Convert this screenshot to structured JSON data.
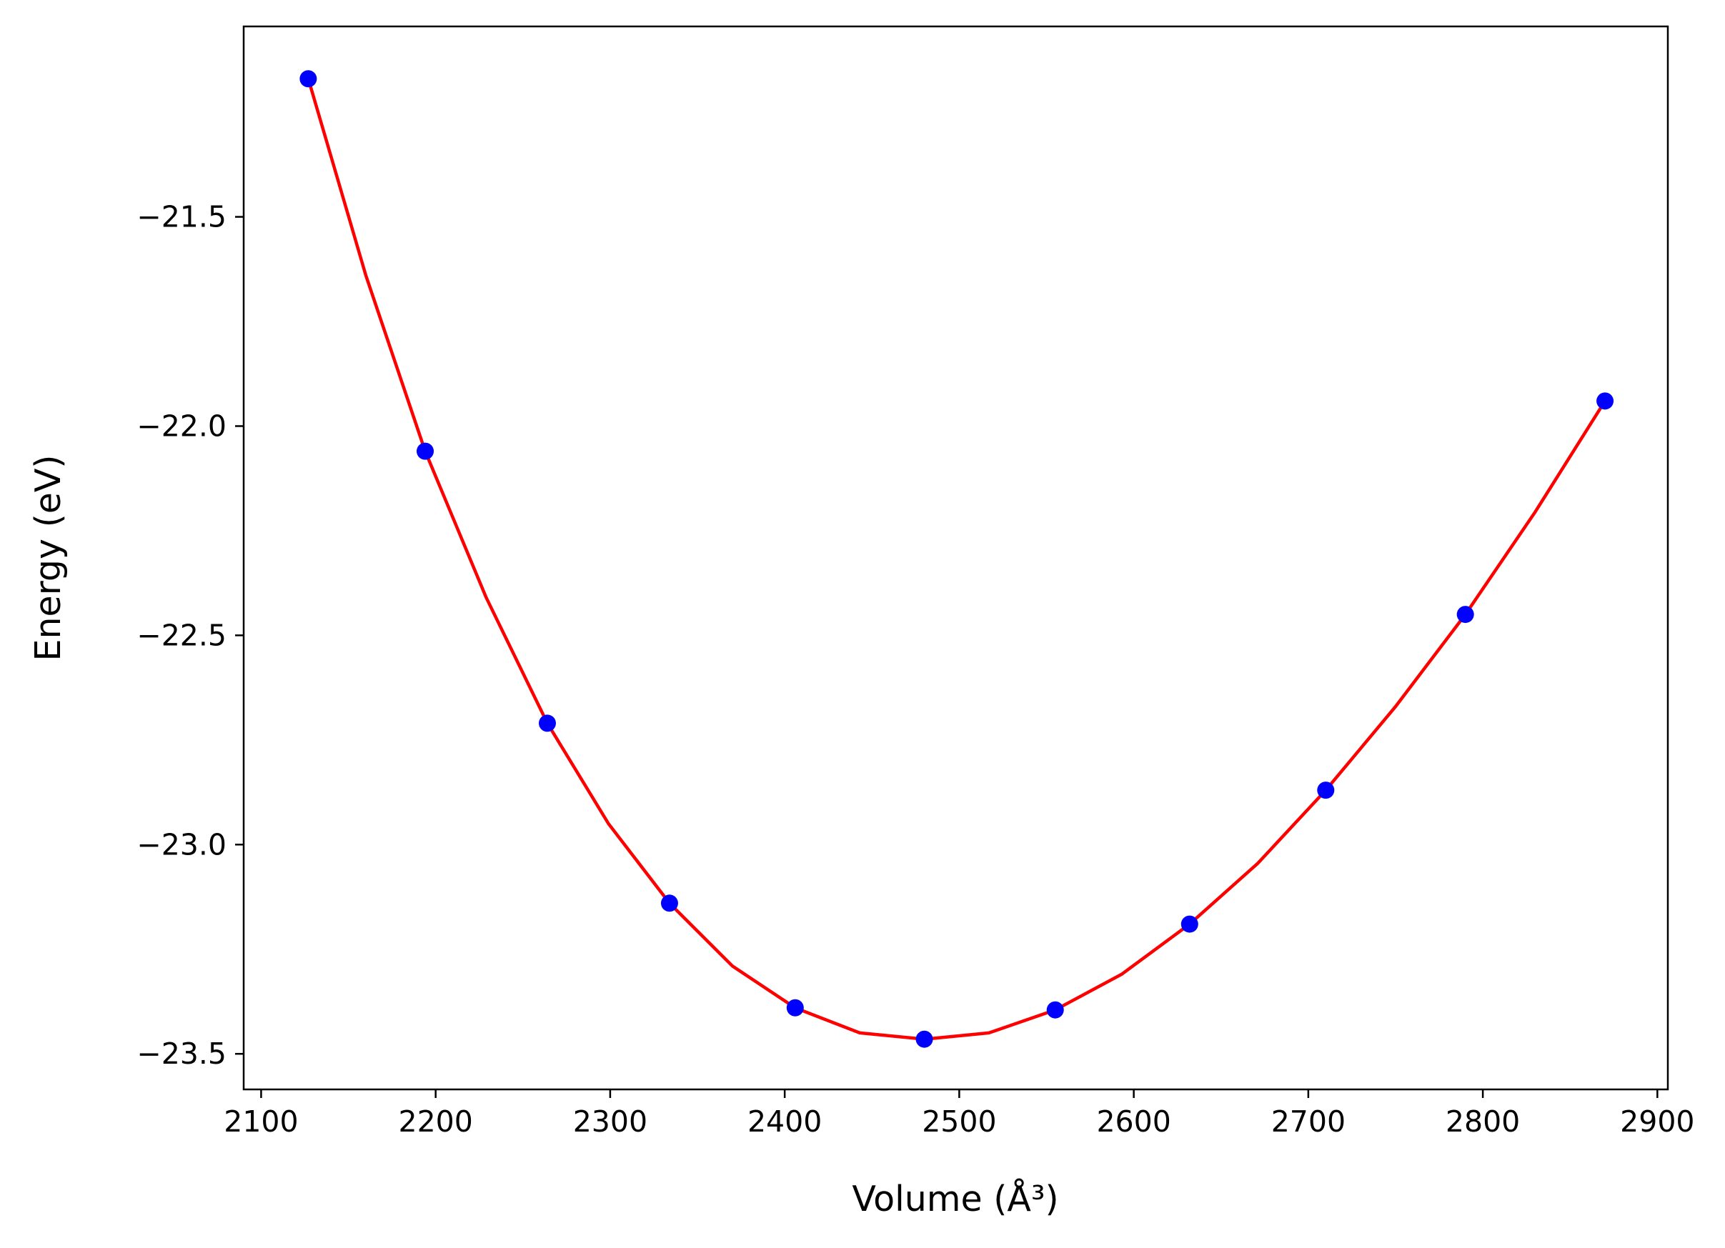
{
  "chart_data": {
    "type": "line",
    "title": "",
    "xlabel": "Volume (Å³)",
    "ylabel": "Energy (eV)",
    "xlim": [
      2090,
      2906
    ],
    "ylim": [
      -23.585,
      -21.045
    ],
    "grid": false,
    "legend": "none",
    "x_ticks": [
      2100,
      2200,
      2300,
      2400,
      2500,
      2600,
      2700,
      2800,
      2900
    ],
    "x_tick_labels": [
      "2100",
      "2200",
      "2300",
      "2400",
      "2500",
      "2600",
      "2700",
      "2800",
      "2900"
    ],
    "y_ticks": [
      -21.5,
      -22.0,
      -22.5,
      -23.0,
      -23.5
    ],
    "y_tick_labels": [
      "−21.5",
      "−22.0",
      "−22.5",
      "−23.0",
      "−23.5"
    ],
    "series": [
      {
        "kind": "scatter",
        "color": "#0000ff",
        "x": [
          2127,
          2194,
          2264,
          2334,
          2406,
          2480,
          2555,
          2632,
          2710,
          2790,
          2870
        ],
        "y": [
          -21.17,
          -22.06,
          -22.71,
          -23.14,
          -23.39,
          -23.465,
          -23.395,
          -23.19,
          -22.87,
          -22.45,
          -21.94
        ]
      },
      {
        "kind": "line",
        "color": "#ff0000",
        "x": [
          2127,
          2160,
          2194,
          2229,
          2264,
          2299,
          2334,
          2370,
          2406,
          2443,
          2480,
          2517,
          2555,
          2593,
          2632,
          2671,
          2710,
          2750,
          2790,
          2830,
          2870
        ],
        "y": [
          -21.17,
          -21.64,
          -22.06,
          -22.41,
          -22.71,
          -22.95,
          -23.14,
          -23.29,
          -23.39,
          -23.45,
          -23.465,
          -23.45,
          -23.395,
          -23.31,
          -23.19,
          -23.045,
          -22.87,
          -22.67,
          -22.45,
          -22.205,
          -21.94
        ]
      }
    ]
  }
}
